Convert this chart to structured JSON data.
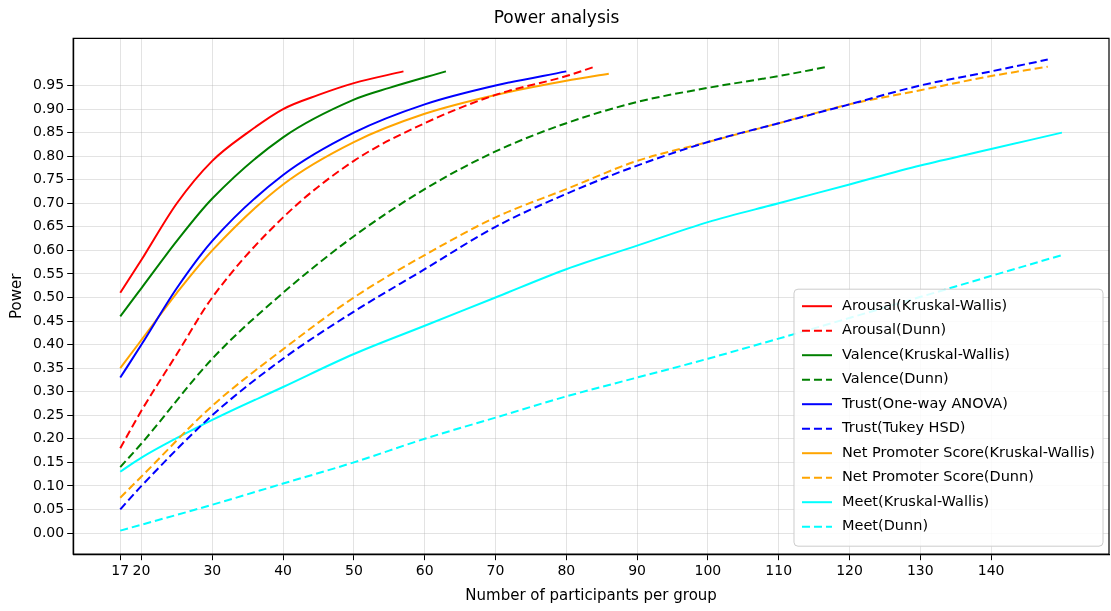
{
  "chart_data": {
    "type": "line",
    "title": "Power analysis",
    "xlabel": "Number of participants per group",
    "ylabel": "Power",
    "xlim": [
      10.35,
      156.65
    ],
    "ylim": [
      -0.045,
      1.05
    ],
    "xticks": [
      17,
      20,
      30,
      40,
      50,
      60,
      70,
      80,
      90,
      100,
      110,
      120,
      130,
      140
    ],
    "yticks": [
      {
        "value": 0,
        "label": "0.00"
      },
      {
        "value": 0.05,
        "label": "0.05"
      },
      {
        "value": 0.1,
        "label": "0.10"
      },
      {
        "value": 0.15,
        "label": "0.15"
      },
      {
        "value": 0.2,
        "label": "0.20"
      },
      {
        "value": 0.25,
        "label": "0.25"
      },
      {
        "value": 0.3,
        "label": "0.30"
      },
      {
        "value": 0.35,
        "label": "0.35"
      },
      {
        "value": 0.4,
        "label": "0.40"
      },
      {
        "value": 0.45,
        "label": "0.45"
      },
      {
        "value": 0.5,
        "label": "0.50"
      },
      {
        "value": 0.55,
        "label": "0.55"
      },
      {
        "value": 0.6,
        "label": "0.60"
      },
      {
        "value": 0.65,
        "label": "0.65"
      },
      {
        "value": 0.7,
        "label": "0.70"
      },
      {
        "value": 0.75,
        "label": "0.75"
      },
      {
        "value": 0.8,
        "label": "0.80"
      },
      {
        "value": 0.85,
        "label": "0.85"
      },
      {
        "value": 0.9,
        "label": "0.90"
      },
      {
        "value": 0.95,
        "label": "0.95"
      }
    ],
    "grid": true,
    "legend": "bottom right",
    "marker": "none",
    "series": [
      {
        "name": "Arousal(Kruskal-Wallis)",
        "color": "#ff0000",
        "line_style": "solid",
        "x": [
          17,
          20,
          25,
          30,
          35,
          40,
          45,
          50,
          57
        ],
        "values": [
          0.51,
          0.58,
          0.7,
          0.79,
          0.85,
          0.9,
          0.93,
          0.955,
          0.98
        ]
      },
      {
        "name": "Arousal(Dunn)",
        "color": "#ff0000",
        "line_style": "dashed",
        "x": [
          17,
          20,
          25,
          30,
          40,
          50,
          60,
          70,
          80,
          84
        ],
        "values": [
          0.18,
          0.26,
          0.38,
          0.5,
          0.67,
          0.79,
          0.87,
          0.93,
          0.97,
          0.99
        ]
      },
      {
        "name": "Valence(Kruskal-Wallis)",
        "color": "#008000",
        "line_style": "solid",
        "x": [
          17,
          20,
          25,
          30,
          40,
          50,
          55,
          63
        ],
        "values": [
          0.46,
          0.52,
          0.62,
          0.71,
          0.84,
          0.92,
          0.945,
          0.98
        ]
      },
      {
        "name": "Valence(Dunn)",
        "color": "#008000",
        "line_style": "dashed",
        "x": [
          17,
          20,
          30,
          40,
          50,
          60,
          70,
          80,
          90,
          100,
          110,
          117
        ],
        "values": [
          0.14,
          0.19,
          0.37,
          0.51,
          0.63,
          0.73,
          0.81,
          0.87,
          0.915,
          0.945,
          0.97,
          0.99
        ]
      },
      {
        "name": "Trust(One-way ANOVA)",
        "color": "#0000ff",
        "line_style": "solid",
        "x": [
          17,
          20,
          25,
          30,
          40,
          50,
          60,
          70,
          80
        ],
        "values": [
          0.33,
          0.4,
          0.52,
          0.62,
          0.76,
          0.85,
          0.91,
          0.95,
          0.98
        ]
      },
      {
        "name": "Trust(Tukey HSD)",
        "color": "#0000ff",
        "line_style": "dashed",
        "x": [
          17,
          20,
          30,
          40,
          50,
          60,
          70,
          80,
          90,
          100,
          110,
          120,
          130,
          140,
          148
        ],
        "values": [
          0.05,
          0.1,
          0.25,
          0.37,
          0.47,
          0.56,
          0.65,
          0.72,
          0.78,
          0.83,
          0.87,
          0.91,
          0.95,
          0.98,
          1.005
        ]
      },
      {
        "name": "Net Promoter Score(Kruskal-Wallis)",
        "color": "#ffa500",
        "line_style": "solid",
        "x": [
          17,
          20,
          25,
          30,
          40,
          50,
          60,
          70,
          80,
          86
        ],
        "values": [
          0.35,
          0.41,
          0.51,
          0.6,
          0.74,
          0.83,
          0.89,
          0.93,
          0.96,
          0.975
        ]
      },
      {
        "name": "Net Promoter Score(Dunn)",
        "color": "#ffa500",
        "line_style": "dashed",
        "x": [
          17,
          20,
          30,
          40,
          50,
          60,
          70,
          80,
          90,
          100,
          110,
          120,
          130,
          140,
          148
        ],
        "values": [
          0.075,
          0.12,
          0.27,
          0.39,
          0.5,
          0.59,
          0.67,
          0.73,
          0.79,
          0.83,
          0.87,
          0.91,
          0.94,
          0.97,
          0.99
        ]
      },
      {
        "name": "Meet(Kruskal-Wallis)",
        "color": "#00ffff",
        "line_style": "solid",
        "x": [
          17,
          20,
          30,
          40,
          50,
          60,
          70,
          80,
          90,
          100,
          110,
          120,
          130,
          140,
          150
        ],
        "values": [
          0.13,
          0.16,
          0.24,
          0.31,
          0.38,
          0.44,
          0.5,
          0.56,
          0.61,
          0.66,
          0.7,
          0.74,
          0.78,
          0.815,
          0.85
        ]
      },
      {
        "name": "Meet(Dunn)",
        "color": "#00ffff",
        "line_style": "dashed",
        "x": [
          17,
          30,
          40,
          50,
          60,
          70,
          80,
          90,
          100,
          150
        ],
        "values": [
          0.005,
          0.06,
          0.105,
          0.15,
          0.2,
          0.245,
          0.29,
          0.33,
          0.37,
          0.59
        ]
      }
    ]
  }
}
